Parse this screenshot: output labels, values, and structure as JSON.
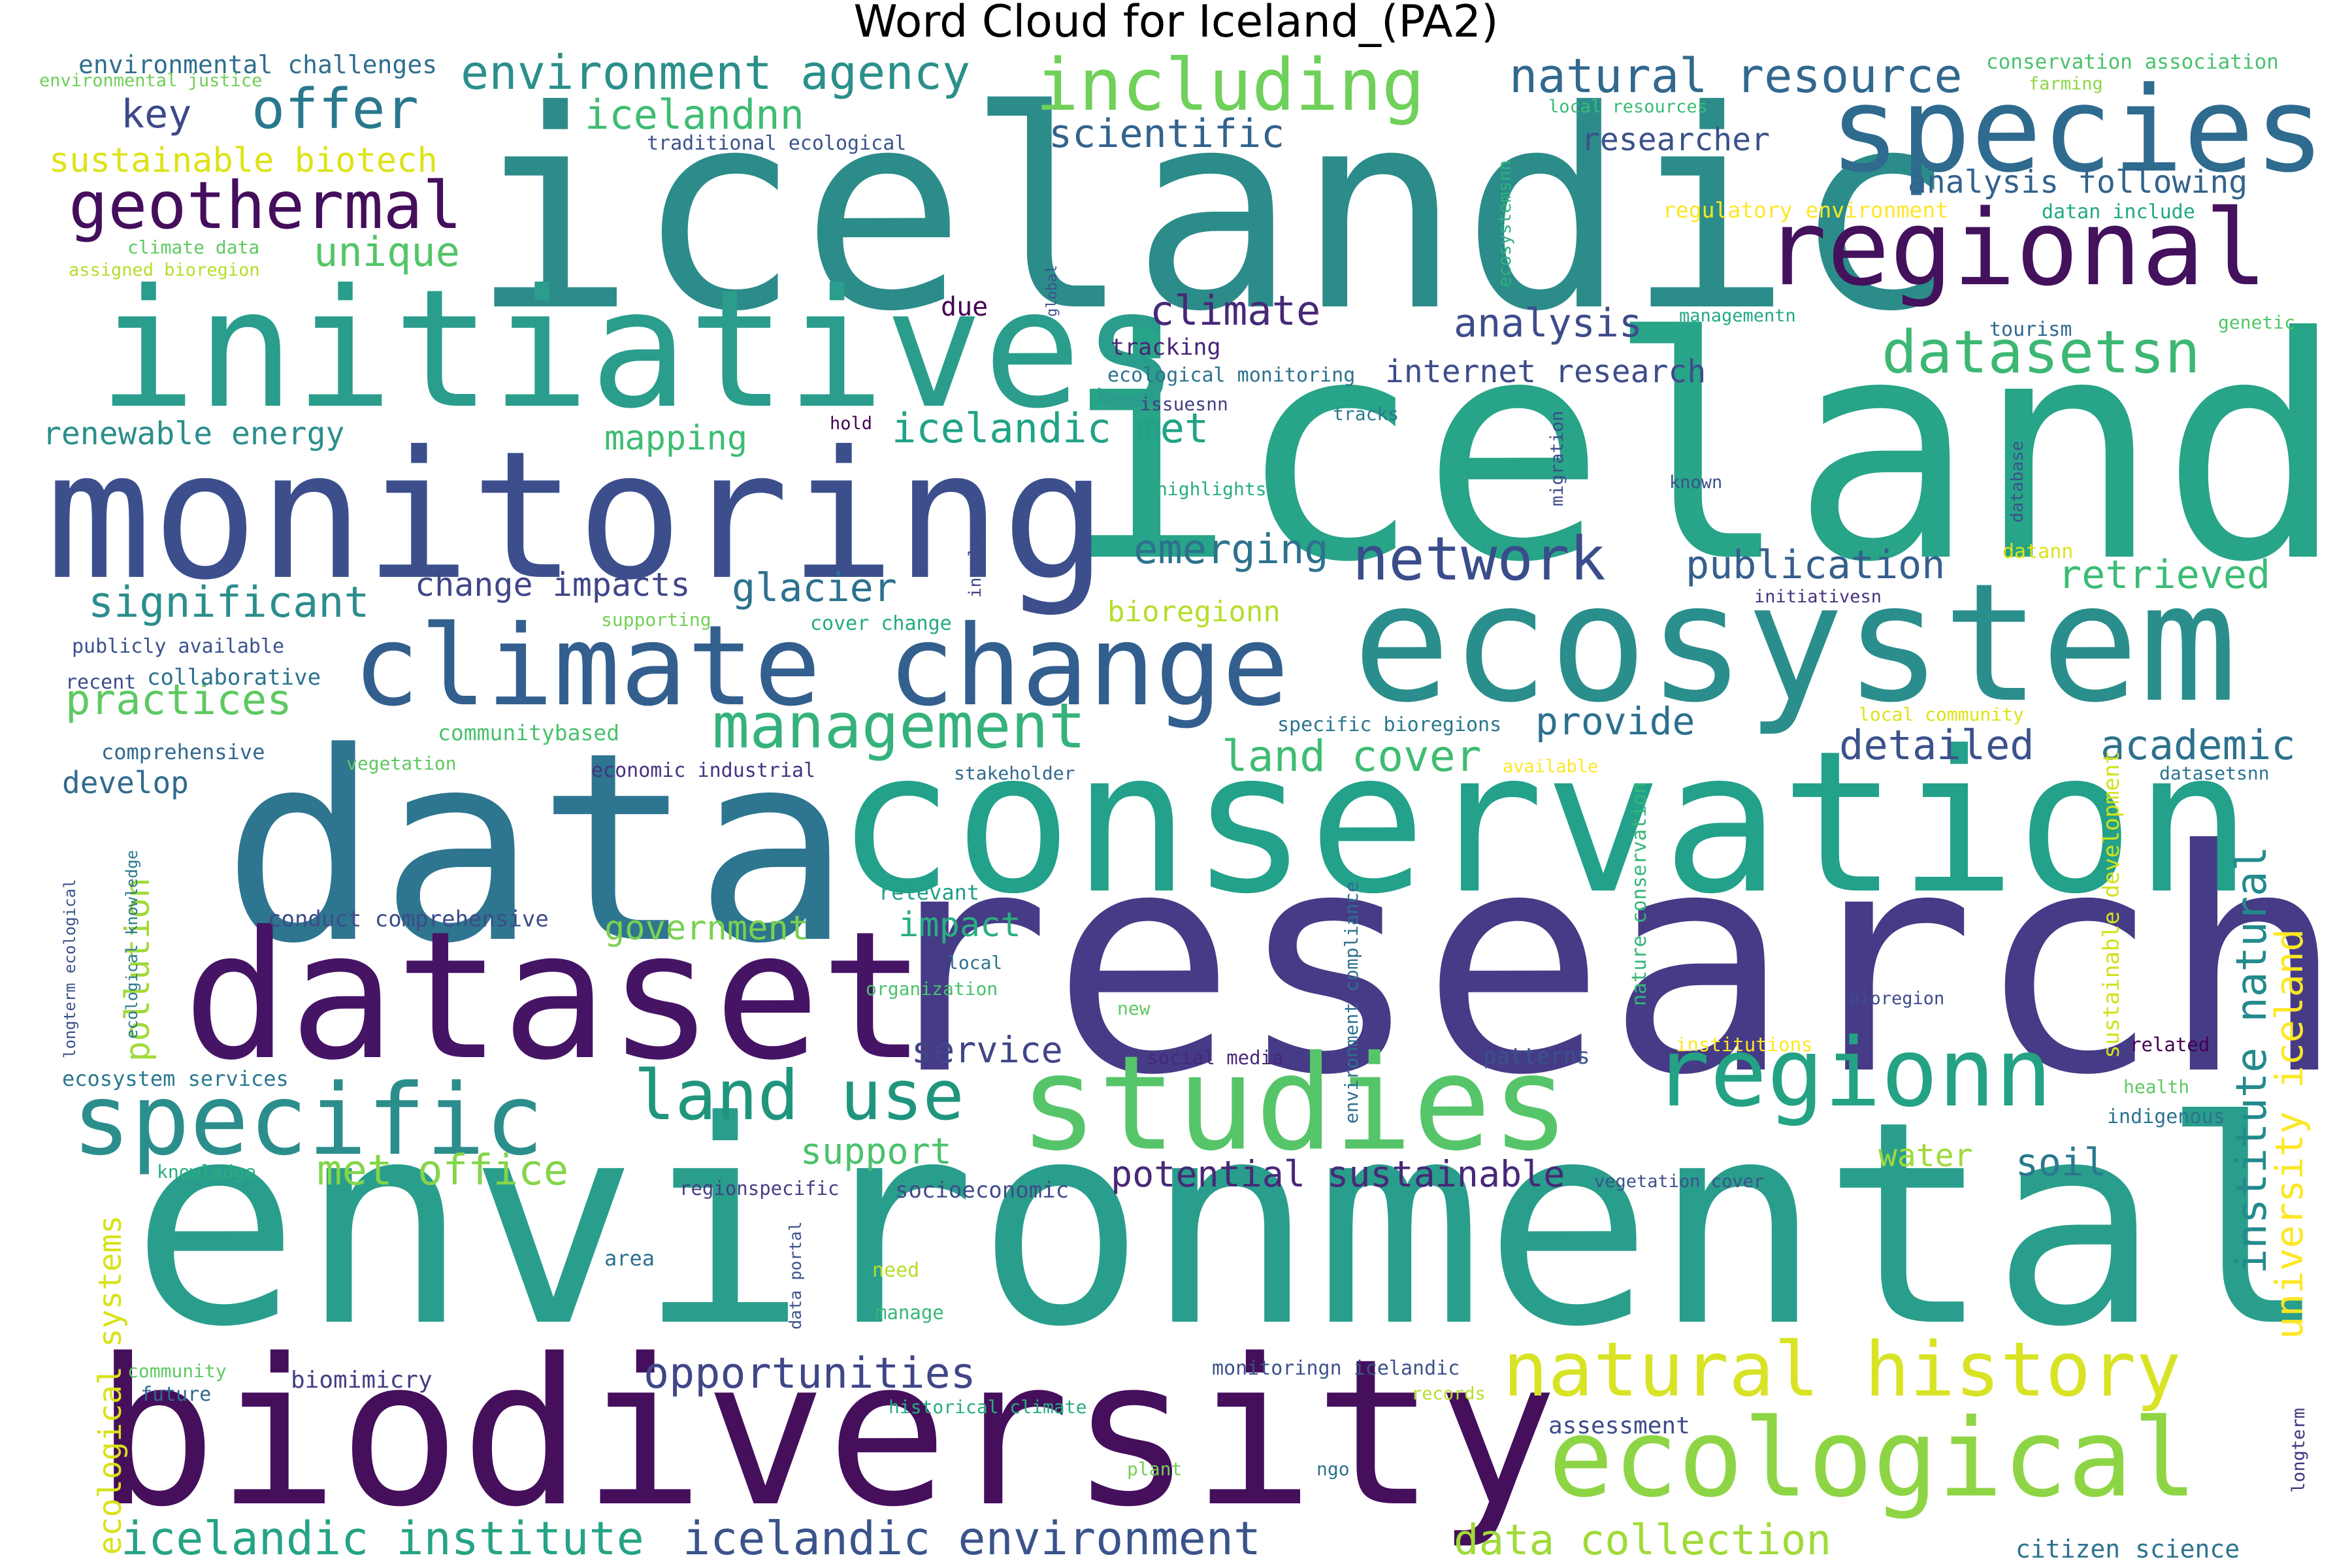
{
  "title": "Word Cloud for Iceland_(PA2)",
  "word_cloud": {
    "colormap": "viridis",
    "background": "#ffffff",
    "words": [
      {
        "text": "icelandic",
        "color": "#2c8c8a"
      },
      {
        "text": "iceland",
        "color": "#28a488"
      },
      {
        "text": "environmental",
        "color": "#2a9e8c"
      },
      {
        "text": "research",
        "color": "#463b86"
      },
      {
        "text": "data",
        "color": "#2e7590"
      },
      {
        "text": "biodiversity",
        "color": "#450f5c"
      },
      {
        "text": "conservation",
        "color": "#23a18a"
      },
      {
        "text": "monitoring",
        "color": "#3c4f8c"
      },
      {
        "text": "initiatives",
        "color": "#2a9d8c"
      },
      {
        "text": "dataset",
        "color": "#461465"
      },
      {
        "text": "ecosystem",
        "color": "#2a8e8c"
      },
      {
        "text": "climate change",
        "color": "#335f8e"
      },
      {
        "text": "species",
        "color": "#2f6a8f"
      },
      {
        "text": "studies",
        "color": "#56c56a"
      },
      {
        "text": "regional",
        "color": "#44115c"
      },
      {
        "text": "specific",
        "color": "#2b8e8c"
      },
      {
        "text": "ecological",
        "color": "#8ed545"
      },
      {
        "text": "regionn",
        "color": "#23a284"
      },
      {
        "text": "natural history",
        "color": "#d9e326"
      },
      {
        "text": "including",
        "color": "#6fd05a"
      },
      {
        "text": "geothermal",
        "color": "#440e5c"
      },
      {
        "text": "management",
        "color": "#35b27b"
      },
      {
        "text": "land use",
        "color": "#20957e"
      },
      {
        "text": "network",
        "color": "#3a4d8b"
      },
      {
        "text": "datasetsn",
        "color": "#3db774"
      },
      {
        "text": "offer",
        "color": "#2a788e"
      },
      {
        "text": "environment agency",
        "color": "#2b8f8a"
      },
      {
        "text": "natural resource",
        "color": "#31688e"
      },
      {
        "text": "icelandic institute",
        "color": "#25a385"
      },
      {
        "text": "icelandic environment",
        "color": "#3a538b"
      },
      {
        "text": "opportunities",
        "color": "#404688"
      },
      {
        "text": "data collection",
        "color": "#a0da39"
      },
      {
        "text": "met office",
        "color": "#85d54a"
      },
      {
        "text": "institute natural",
        "color": "#238a8d"
      },
      {
        "text": "university iceland",
        "color": "#fde725"
      },
      {
        "text": "significant",
        "color": "#2b8e8c"
      },
      {
        "text": "practices",
        "color": "#5ec962"
      },
      {
        "text": "icelandic met",
        "color": "#20a386"
      },
      {
        "text": "glacier",
        "color": "#2d718e"
      },
      {
        "text": "emerging",
        "color": "#2d718e"
      },
      {
        "text": "publication",
        "color": "#355f8d"
      },
      {
        "text": "retrieved",
        "color": "#3cbc75"
      },
      {
        "text": "academic",
        "color": "#2d718e"
      },
      {
        "text": "detailed",
        "color": "#3b528b"
      },
      {
        "text": "provide",
        "color": "#2d708e"
      },
      {
        "text": "land cover",
        "color": "#3fbc73"
      },
      {
        "text": "analysis",
        "color": "#3e4c8a"
      },
      {
        "text": "climate",
        "color": "#482878"
      },
      {
        "text": "scientific",
        "color": "#33638d"
      },
      {
        "text": "unique",
        "color": "#54c568"
      },
      {
        "text": "key",
        "color": "#3e4989"
      },
      {
        "text": "icelandnn",
        "color": "#3fbc73"
      },
      {
        "text": "sustainable biotech",
        "color": "#dde318"
      },
      {
        "text": "renewable energy",
        "color": "#2b8e8c"
      },
      {
        "text": "mapping",
        "color": "#3dbc74"
      },
      {
        "text": "change impacts",
        "color": "#404688"
      },
      {
        "text": "researcher",
        "color": "#3b528b"
      },
      {
        "text": "analysis following",
        "color": "#33638d"
      },
      {
        "text": "internet research",
        "color": "#3e4c8a"
      },
      {
        "text": "pollution",
        "color": "#a0da39"
      },
      {
        "text": "ecological systems",
        "color": "#d8e219"
      },
      {
        "text": "government",
        "color": "#7ad151"
      },
      {
        "text": "impact",
        "color": "#29af7f"
      },
      {
        "text": "service",
        "color": "#404688"
      },
      {
        "text": "support",
        "color": "#4ac16d"
      },
      {
        "text": "potential sustainable",
        "color": "#482878"
      },
      {
        "text": "soil",
        "color": "#2a788e"
      },
      {
        "text": "water",
        "color": "#9fda3a"
      },
      {
        "text": "bioregionn",
        "color": "#b5de2b"
      },
      {
        "text": "develop",
        "color": "#306a8e"
      },
      {
        "text": "due",
        "color": "#440154"
      },
      {
        "text": "citizen science",
        "color": "#2c738e"
      },
      {
        "text": "assessment",
        "color": "#3e4c8a"
      },
      {
        "text": "biomimicry",
        "color": "#433e85"
      },
      {
        "text": "sustainable development",
        "color": "#d2e21b"
      },
      {
        "text": "nature conservation",
        "color": "#35b779"
      },
      {
        "text": "environment compliance",
        "color": "#2d708e"
      },
      {
        "text": "environmental challenges",
        "color": "#2e6e8e"
      },
      {
        "text": "environmental justice",
        "color": "#6ece58"
      },
      {
        "text": "conservation association",
        "color": "#4ac16d"
      },
      {
        "text": "farming",
        "color": "#8ed645"
      },
      {
        "text": "local resources",
        "color": "#3bbb75"
      },
      {
        "text": "traditional ecological",
        "color": "#3b528b"
      },
      {
        "text": "regulatory environment",
        "color": "#fde725"
      },
      {
        "text": "datan include",
        "color": "#22a884"
      },
      {
        "text": "climate data",
        "color": "#5ec962"
      },
      {
        "text": "assigned bioregion",
        "color": "#b5de2b"
      },
      {
        "text": "ecosystemsnn",
        "color": "#2db27d"
      },
      {
        "text": "global",
        "color": "#3b528b"
      },
      {
        "text": "tracking",
        "color": "#482475"
      },
      {
        "text": "managementn",
        "color": "#22a884"
      },
      {
        "text": "tourism",
        "color": "#31688e"
      },
      {
        "text": "genetic",
        "color": "#54c568"
      },
      {
        "text": "ecological monitoring",
        "color": "#2c728e"
      },
      {
        "text": "issuesnn",
        "color": "#433e85"
      },
      {
        "text": "tracks",
        "color": "#2a788e"
      },
      {
        "text": "hold",
        "color": "#440154"
      },
      {
        "text": "migration",
        "color": "#3e4c8a"
      },
      {
        "text": "database",
        "color": "#3b528b"
      },
      {
        "text": "highlights",
        "color": "#27ad81"
      },
      {
        "text": "known",
        "color": "#3b528b"
      },
      {
        "text": "involve",
        "color": "#3f4788"
      },
      {
        "text": "datann",
        "color": "#dde318"
      },
      {
        "text": "supporting",
        "color": "#73d056"
      },
      {
        "text": "cover change",
        "color": "#23a983"
      },
      {
        "text": "initiativesn",
        "color": "#46337e"
      },
      {
        "text": "publicly available",
        "color": "#3b528b"
      },
      {
        "text": "collaborative",
        "color": "#2c728e"
      },
      {
        "text": "recent",
        "color": "#3e4c8a"
      },
      {
        "text": "local community",
        "color": "#dde318"
      },
      {
        "text": "specific bioregions",
        "color": "#2a768e"
      },
      {
        "text": "communitybased",
        "color": "#4ac16d"
      },
      {
        "text": "comprehensive",
        "color": "#31688e"
      },
      {
        "text": "vegetation",
        "color": "#5ec962"
      },
      {
        "text": "economic industrial",
        "color": "#46337e"
      },
      {
        "text": "stakeholder",
        "color": "#31688e"
      },
      {
        "text": "available",
        "color": "#fde725"
      },
      {
        "text": "datasetsnn",
        "color": "#2c728e"
      },
      {
        "text": "longterm ecological",
        "color": "#3b528b"
      },
      {
        "text": "ecological knowledge",
        "color": "#2a788e"
      },
      {
        "text": "conduct comprehensive",
        "color": "#3e4c8a"
      },
      {
        "text": "relevant",
        "color": "#1f9e89"
      },
      {
        "text": "local",
        "color": "#2c728e"
      },
      {
        "text": "organization",
        "color": "#4ac16d"
      },
      {
        "text": "new",
        "color": "#5ec962"
      },
      {
        "text": "bioregion",
        "color": "#3e4c8a"
      },
      {
        "text": "institutions",
        "color": "#fde725"
      },
      {
        "text": "related",
        "color": "#440154"
      },
      {
        "text": "health",
        "color": "#5ec962"
      },
      {
        "text": "indigenous",
        "color": "#2c728e"
      },
      {
        "text": "social media",
        "color": "#482878"
      },
      {
        "text": "patterns",
        "color": "#3b528b"
      },
      {
        "text": "ecosystem services",
        "color": "#2a788e"
      },
      {
        "text": "knowledge",
        "color": "#27ad81"
      },
      {
        "text": "regionspecific",
        "color": "#433e85"
      },
      {
        "text": "socioeconomic",
        "color": "#3e4c8a"
      },
      {
        "text": "vegetation cover",
        "color": "#3b528b"
      },
      {
        "text": "area",
        "color": "#2c728e"
      },
      {
        "text": "need",
        "color": "#b5de2b"
      },
      {
        "text": "manage",
        "color": "#35b779"
      },
      {
        "text": "data portal",
        "color": "#3b528b"
      },
      {
        "text": "community",
        "color": "#5ec962"
      },
      {
        "text": "future",
        "color": "#31688e"
      },
      {
        "text": "monitoringn icelandic",
        "color": "#3b528b"
      },
      {
        "text": "historical climate",
        "color": "#27ad81"
      },
      {
        "text": "records",
        "color": "#b5de2b"
      },
      {
        "text": "plant",
        "color": "#73d056"
      },
      {
        "text": "ngo",
        "color": "#2c728e"
      },
      {
        "text": "longterm",
        "color": "#46337e"
      }
    ]
  }
}
